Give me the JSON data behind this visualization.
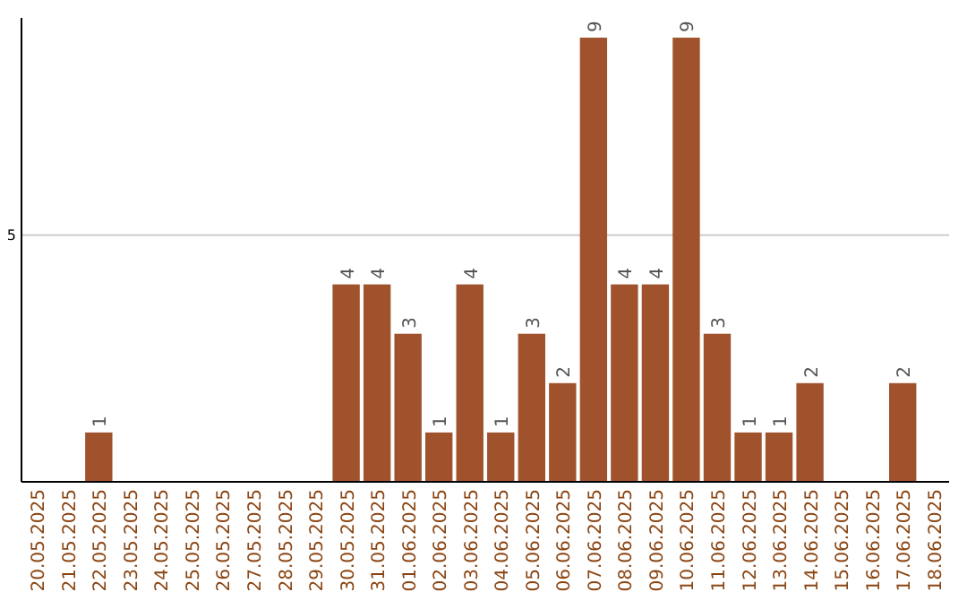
{
  "chart_data": {
    "type": "bar",
    "categories": [
      "20.05.2025",
      "21.05.2025",
      "22.05.2025",
      "23.05.2025",
      "24.05.2025",
      "25.05.2025",
      "26.05.2025",
      "27.05.2025",
      "28.05.2025",
      "29.05.2025",
      "30.05.2025",
      "31.05.2025",
      "01.06.2025",
      "02.06.2025",
      "03.06.2025",
      "04.06.2025",
      "05.06.2025",
      "06.06.2025",
      "07.06.2025",
      "08.06.2025",
      "09.06.2025",
      "10.06.2025",
      "11.06.2025",
      "12.06.2025",
      "13.06.2025",
      "14.06.2025",
      "15.06.2025",
      "16.06.2025",
      "17.06.2025",
      "18.06.2025"
    ],
    "values": [
      0,
      0,
      1,
      0,
      0,
      0,
      0,
      0,
      0,
      0,
      4,
      4,
      3,
      1,
      4,
      1,
      3,
      2,
      9,
      4,
      4,
      9,
      3,
      1,
      1,
      2,
      0,
      0,
      2,
      0
    ],
    "value_labels": [
      null,
      null,
      "1",
      null,
      null,
      null,
      null,
      null,
      null,
      null,
      "4",
      "4",
      "3",
      "1",
      "4",
      "1",
      "3",
      "2",
      "9",
      "4",
      "4",
      "9",
      "3",
      "1",
      "1",
      "2",
      null,
      null,
      "2",
      null
    ],
    "color": "#a0522d",
    "ylim": [
      0,
      9.4
    ],
    "yticks": [
      5
    ],
    "grid": "y"
  }
}
